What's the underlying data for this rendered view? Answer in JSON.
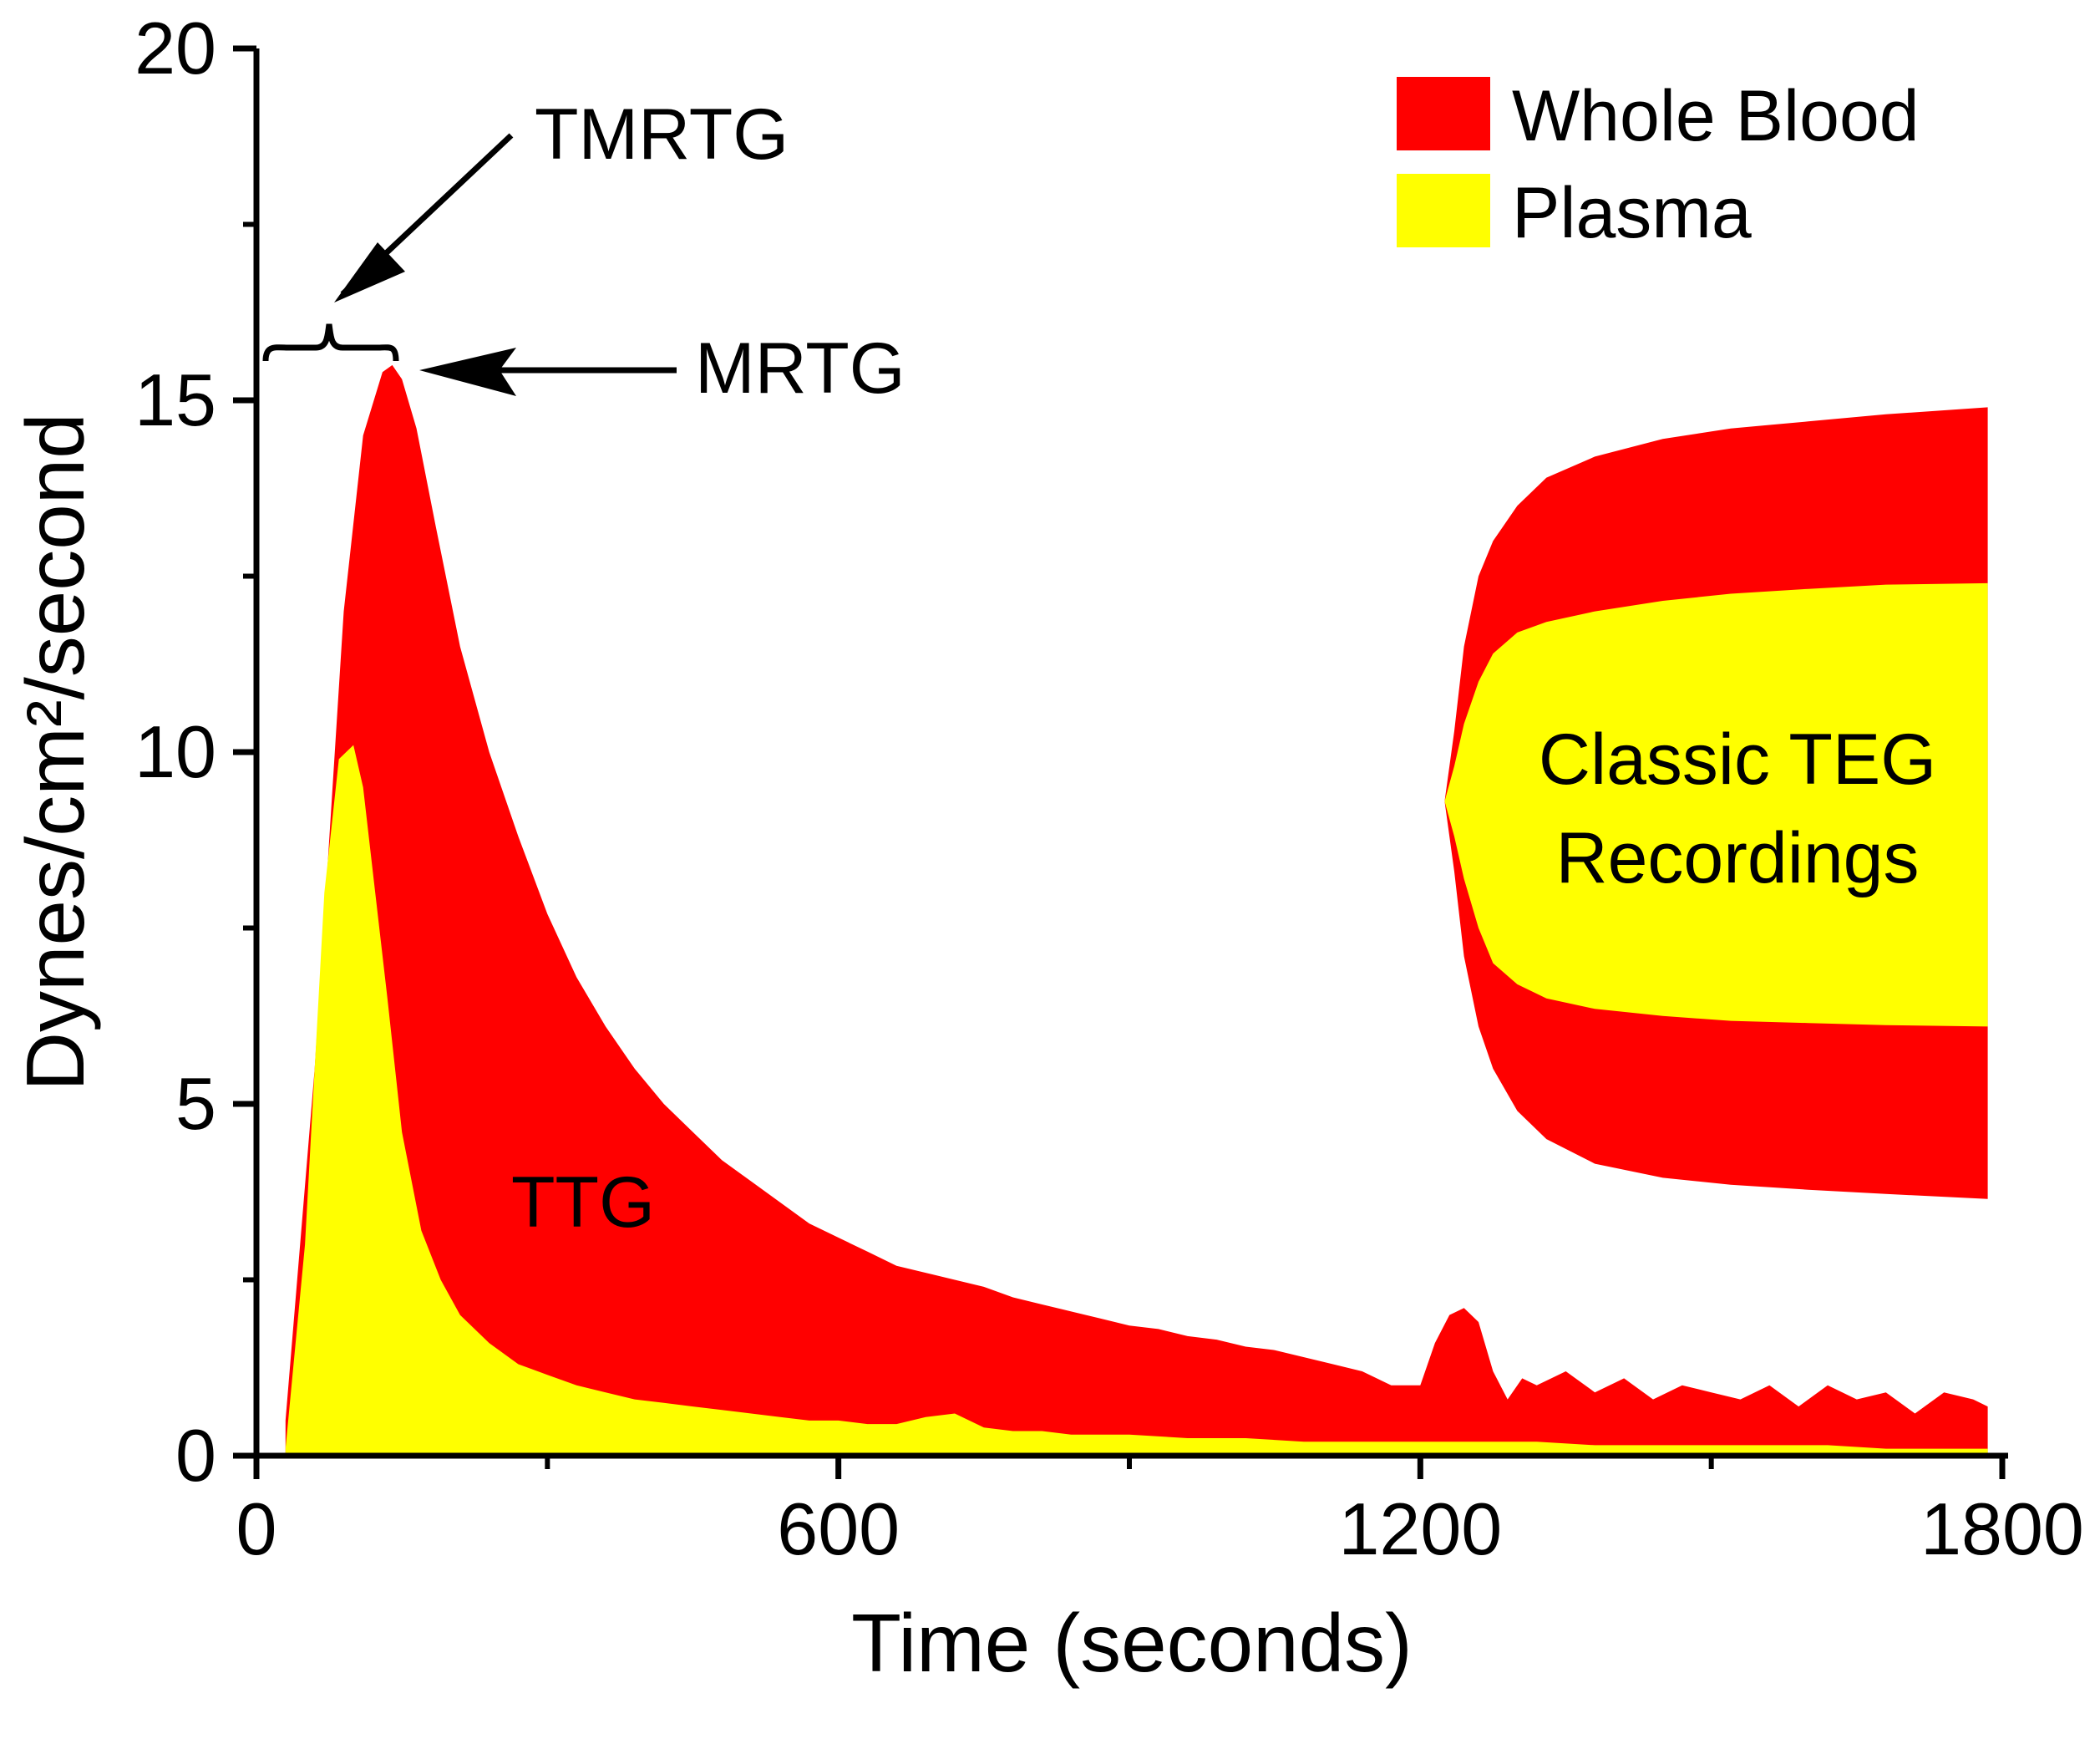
{
  "chart_data": {
    "type": "area",
    "title": "",
    "xlabel": "Time (seconds)",
    "ylabel": "Dynes/cm²/second",
    "xlim": [
      0,
      1800
    ],
    "ylim": [
      0,
      20
    ],
    "xticks": [
      0,
      600,
      1200,
      1800
    ],
    "yticks": [
      0,
      5,
      10,
      15,
      20
    ],
    "legend_position": "top-right",
    "colors": {
      "whole_blood": "#FF0000",
      "plasma": "#FFFF00"
    },
    "series": [
      {
        "name": "Whole Blood",
        "x": [
          30,
          60,
          90,
          110,
          130,
          140,
          150,
          165,
          185,
          210,
          240,
          270,
          300,
          330,
          360,
          390,
          420,
          450,
          480,
          510,
          540,
          570,
          600,
          630,
          660,
          690,
          720,
          750,
          780,
          810,
          840,
          870,
          900,
          930,
          960,
          990,
          1020,
          1050,
          1080,
          1110,
          1140,
          1170,
          1200,
          1215,
          1230,
          1245,
          1260,
          1275,
          1290,
          1305,
          1320,
          1350,
          1380,
          1410,
          1440,
          1470,
          1500,
          1530,
          1560,
          1590,
          1620,
          1650,
          1680,
          1710,
          1740,
          1770,
          1785
        ],
        "values": [
          0.5,
          5.5,
          12.0,
          14.5,
          15.4,
          15.5,
          15.3,
          14.6,
          13.2,
          11.5,
          10.0,
          8.8,
          7.7,
          6.8,
          6.1,
          5.5,
          5.0,
          4.6,
          4.2,
          3.9,
          3.6,
          3.3,
          3.1,
          2.9,
          2.7,
          2.6,
          2.5,
          2.4,
          2.25,
          2.15,
          2.05,
          1.95,
          1.85,
          1.8,
          1.7,
          1.65,
          1.55,
          1.5,
          1.4,
          1.3,
          1.2,
          1.0,
          1.0,
          1.6,
          2.0,
          2.1,
          1.9,
          1.2,
          0.8,
          1.1,
          1.0,
          1.2,
          0.9,
          1.1,
          0.8,
          1.0,
          0.9,
          0.8,
          1.0,
          0.7,
          1.0,
          0.8,
          0.9,
          0.6,
          0.9,
          0.8,
          0.7
        ]
      },
      {
        "name": "Plasma",
        "x": [
          30,
          50,
          70,
          85,
          100,
          110,
          120,
          135,
          150,
          170,
          190,
          210,
          240,
          270,
          300,
          330,
          360,
          390,
          420,
          450,
          480,
          510,
          540,
          570,
          600,
          630,
          660,
          690,
          720,
          750,
          780,
          810,
          840,
          870,
          900,
          960,
          1020,
          1080,
          1140,
          1200,
          1260,
          1320,
          1380,
          1440,
          1500,
          1560,
          1620,
          1680,
          1740,
          1785
        ],
        "values": [
          0.1,
          3.0,
          8.0,
          9.9,
          10.1,
          9.5,
          8.3,
          6.5,
          4.6,
          3.2,
          2.5,
          2.0,
          1.6,
          1.3,
          1.15,
          1.0,
          0.9,
          0.8,
          0.75,
          0.7,
          0.65,
          0.6,
          0.55,
          0.5,
          0.5,
          0.45,
          0.45,
          0.55,
          0.6,
          0.4,
          0.35,
          0.35,
          0.3,
          0.3,
          0.3,
          0.25,
          0.25,
          0.2,
          0.2,
          0.2,
          0.2,
          0.2,
          0.15,
          0.15,
          0.15,
          0.15,
          0.15,
          0.1,
          0.1,
          0.1
        ]
      }
    ],
    "teg_recordings": {
      "label": "Classic TEG Recordings",
      "x": [
        1225,
        1235,
        1245,
        1260,
        1275,
        1300,
        1330,
        1380,
        1450,
        1520,
        1600,
        1680,
        1785
      ],
      "whole_blood_upper": [
        9.3,
        10.3,
        11.5,
        12.5,
        13.0,
        13.5,
        13.9,
        14.2,
        14.45,
        14.6,
        14.7,
        14.8,
        14.9
      ],
      "whole_blood_lower": [
        9.3,
        8.3,
        7.1,
        6.1,
        5.5,
        4.9,
        4.5,
        4.15,
        3.95,
        3.85,
        3.78,
        3.72,
        3.65
      ],
      "plasma_upper": [
        9.3,
        9.8,
        10.4,
        11.0,
        11.4,
        11.7,
        11.85,
        12.0,
        12.15,
        12.25,
        12.32,
        12.38,
        12.4
      ],
      "plasma_lower": [
        9.3,
        8.8,
        8.2,
        7.5,
        7.0,
        6.7,
        6.5,
        6.35,
        6.25,
        6.18,
        6.15,
        6.12,
        6.1
      ]
    },
    "annotations": {
      "tmrtg": "TMRTG",
      "mrtg": "MRTG",
      "ttg": "TTG",
      "mrtg_point": {
        "x": 140,
        "y": 15.5
      },
      "tmrtg_range": [
        0,
        140
      ]
    }
  }
}
